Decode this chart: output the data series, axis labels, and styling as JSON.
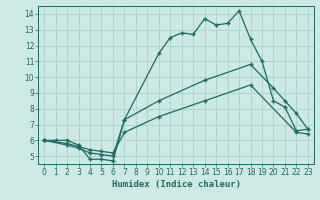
{
  "xlabel": "Humidex (Indice chaleur)",
  "xlim": [
    -0.5,
    23.5
  ],
  "ylim": [
    4.5,
    14.5
  ],
  "xticks": [
    0,
    1,
    2,
    3,
    4,
    5,
    6,
    7,
    8,
    9,
    10,
    11,
    12,
    13,
    14,
    15,
    16,
    17,
    18,
    19,
    20,
    21,
    22,
    23
  ],
  "yticks": [
    5,
    6,
    7,
    8,
    9,
    10,
    11,
    12,
    13,
    14
  ],
  "background_color": "#cce9e5",
  "grid_color": "#aed4cf",
  "line_color": "#1a6b62",
  "series": [
    {
      "x": [
        0,
        1,
        2,
        3,
        4,
        5,
        6,
        7,
        10,
        11,
        12,
        13,
        14,
        15,
        16,
        17,
        18,
        19,
        20,
        21,
        22,
        23
      ],
      "y": [
        6.0,
        6.0,
        6.0,
        5.7,
        4.8,
        4.8,
        4.7,
        7.3,
        11.5,
        12.5,
        12.8,
        12.7,
        13.7,
        13.3,
        13.4,
        14.2,
        12.4,
        11.0,
        8.5,
        8.1,
        6.6,
        6.7
      ]
    },
    {
      "x": [
        0,
        2,
        3,
        4,
        5,
        6,
        7,
        10,
        14,
        18,
        20,
        21,
        22,
        23
      ],
      "y": [
        6.0,
        5.7,
        5.5,
        5.2,
        5.1,
        5.0,
        7.3,
        8.5,
        9.8,
        10.8,
        9.3,
        8.5,
        7.7,
        6.7
      ]
    },
    {
      "x": [
        0,
        2,
        3,
        4,
        5,
        6,
        7,
        10,
        14,
        18,
        22,
        23
      ],
      "y": [
        6.0,
        5.8,
        5.6,
        5.4,
        5.3,
        5.2,
        6.5,
        7.5,
        8.5,
        9.5,
        6.5,
        6.4
      ]
    }
  ]
}
